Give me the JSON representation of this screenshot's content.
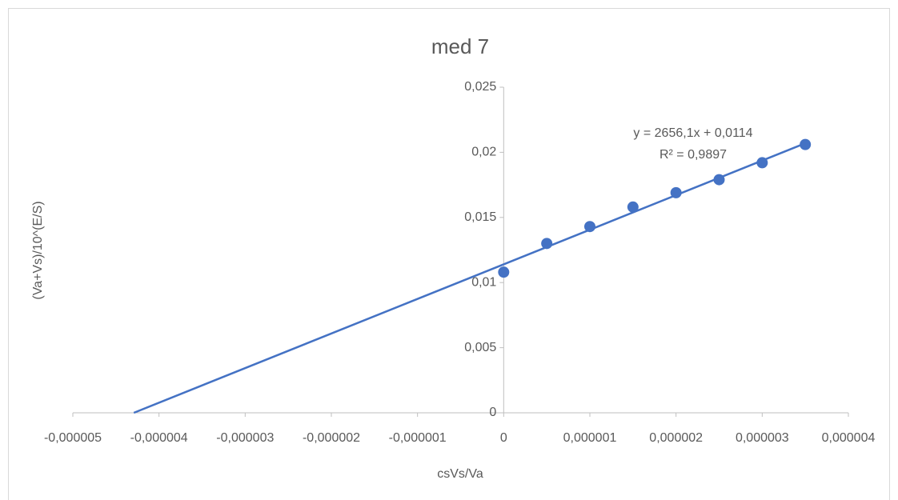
{
  "chart_data": {
    "type": "scatter",
    "title": "med 7",
    "x_label": "csVs/Va",
    "y_label": "(Va+Vs)/10^(E/S)",
    "series": [
      {
        "name": "med 7",
        "color": "#4472c4",
        "x": [
          0,
          5e-07,
          1e-06,
          1.5e-06,
          2e-06,
          2.5e-06,
          3e-06,
          3.5e-06
        ],
        "values": [
          0.0108,
          0.013,
          0.0143,
          0.0158,
          0.0169,
          0.0179,
          0.0192,
          0.0206
        ]
      }
    ],
    "trendline": {
      "type": "linear",
      "color": "#4472c4",
      "slope": 2656.1,
      "intercept": 0.0114,
      "equation_label": "y = 2656,1x + 0,0114",
      "r2": 0.9897,
      "r2_label": "R² = 0,9897"
    },
    "xlim": [
      -5e-06,
      4e-06
    ],
    "xticks": [
      {
        "value": -5e-06,
        "label": "-0,000005"
      },
      {
        "value": -4e-06,
        "label": "-0,000004"
      },
      {
        "value": -3e-06,
        "label": "-0,000003"
      },
      {
        "value": -2e-06,
        "label": "-0,000002"
      },
      {
        "value": -1e-06,
        "label": "-0,000001"
      },
      0,
      {
        "value": 1e-06,
        "label": "0,000001"
      },
      {
        "value": 2e-06,
        "label": "0,000002"
      },
      {
        "value": 3e-06,
        "label": "0,000003"
      },
      {
        "value": 4e-06,
        "label": "0,000004"
      }
    ],
    "ylim": [
      0,
      0.025
    ],
    "yticks": [
      0,
      {
        "value": 0.005,
        "label": "0,005"
      },
      {
        "value": 0.01,
        "label": "0,01"
      },
      {
        "value": 0.015,
        "label": "0,015"
      },
      {
        "value": 0.02,
        "label": "0,02"
      },
      {
        "value": 0.025,
        "label": "0,025"
      }
    ]
  }
}
